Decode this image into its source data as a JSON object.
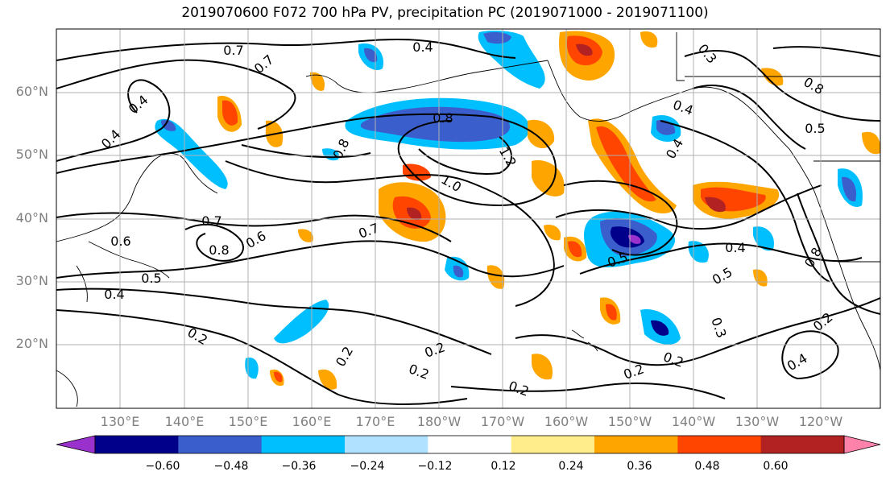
{
  "title": "2019070600 F072 700 hPa PV, precipitation PC (2019071000 - 2019071100)",
  "lat_labels": [
    "60°N",
    "50°N",
    "40°N",
    "30°N",
    "20°N"
  ],
  "lon_labels": [
    "130°E",
    "140°E",
    "150°E",
    "160°E",
    "170°E",
    "180°W",
    "170°W",
    "160°W",
    "150°W",
    "140°W",
    "130°W",
    "120°W"
  ],
  "colorbar": {
    "ticks": [
      "−0.60",
      "−0.48",
      "−0.36",
      "−0.24",
      "−0.12",
      "0.12",
      "0.24",
      "0.36",
      "0.48",
      "0.60"
    ],
    "colors": [
      "#9932cc",
      "#00008b",
      "#3a5fcd",
      "#00bfff",
      "#b0e2ff",
      "#ffffff",
      "#ffec8b",
      "#ffa500",
      "#ff4500",
      "#b22222",
      "#ff82ab"
    ]
  },
  "contour_labels": [
    {
      "text": "0.7"
    },
    {
      "text": "0.7"
    },
    {
      "text": "0.4"
    },
    {
      "text": "0.4"
    },
    {
      "text": "0.4"
    },
    {
      "text": "0.8"
    },
    {
      "text": "1.0"
    },
    {
      "text": "1.2"
    },
    {
      "text": "0.8"
    },
    {
      "text": "0.7"
    },
    {
      "text": "0.8"
    },
    {
      "text": "0.6"
    },
    {
      "text": "0.6"
    },
    {
      "text": "0.5"
    },
    {
      "text": "0.4"
    },
    {
      "text": "0.7"
    },
    {
      "text": "0.2"
    },
    {
      "text": "0.2"
    },
    {
      "text": "0.2"
    },
    {
      "text": "0.2"
    },
    {
      "text": "0.2"
    },
    {
      "text": "0.2"
    },
    {
      "text": "0.2"
    },
    {
      "text": "0.5"
    },
    {
      "text": "0.4"
    },
    {
      "text": "0.4"
    },
    {
      "text": "0.5"
    },
    {
      "text": "0.3"
    },
    {
      "text": "0.4"
    },
    {
      "text": "0.2"
    },
    {
      "text": "0.4"
    },
    {
      "text": "0.5"
    },
    {
      "text": "0.8"
    },
    {
      "text": "0.3"
    },
    {
      "text": "0.8"
    }
  ]
}
